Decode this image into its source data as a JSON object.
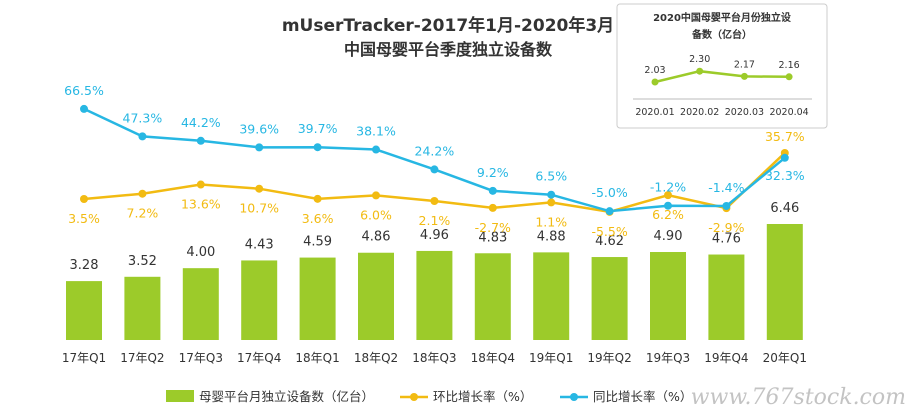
{
  "chart_data": [
    {
      "type": "bar",
      "title": "mUserTracker-2017年1月-2020年3月",
      "subtitle": "中国母婴平台季度独立设备数",
      "categories": [
        "17年Q1",
        "17年Q2",
        "17年Q3",
        "17年Q4",
        "18年Q1",
        "18年Q2",
        "18年Q3",
        "18年Q4",
        "19年Q1",
        "19年Q2",
        "19年Q3",
        "19年Q4",
        "20年Q1"
      ],
      "series": [
        {
          "name": "母婴平台月独立设备数（亿台）",
          "type": "bar",
          "color": "#9ccb2a",
          "values": [
            3.28,
            3.52,
            4.0,
            4.43,
            4.59,
            4.86,
            4.96,
            4.83,
            4.88,
            4.62,
            4.9,
            4.76,
            6.46
          ],
          "labels": [
            "3.28",
            "3.52",
            "4.00",
            "4.43",
            "4.59",
            "4.86",
            "4.96",
            "4.83",
            "4.88",
            "4.62",
            "4.90",
            "4.76",
            "6.46"
          ]
        },
        {
          "name": "环比增长率（%）",
          "type": "line",
          "color": "#f2bb12",
          "values": [
            3.5,
            7.2,
            13.6,
            10.7,
            3.6,
            6.0,
            2.1,
            -2.7,
            1.1,
            -5.5,
            6.2,
            -2.9,
            35.7
          ],
          "labels": [
            "3.5%",
            "7.2%",
            "13.6%",
            "10.7%",
            "3.6%",
            "6.0%",
            "2.1%",
            "-2.7%",
            "1.1%",
            "-5.5%",
            "6.2%",
            "-2.9%",
            "35.7%"
          ]
        },
        {
          "name": "同比增长率（%）",
          "type": "line",
          "color": "#27b7e3",
          "values": [
            66.5,
            47.3,
            44.2,
            39.6,
            39.7,
            38.1,
            24.2,
            9.2,
            6.5,
            -5.0,
            -1.2,
            -1.4,
            32.3
          ],
          "labels": [
            "66.5%",
            "47.3%",
            "44.2%",
            "39.6%",
            "39.7%",
            "38.1%",
            "24.2%",
            "9.2%",
            "6.5%",
            "-5.0%",
            "-1.2%",
            "-1.4%",
            "32.3%"
          ]
        }
      ],
      "legend_position": "bottom",
      "grid": false
    },
    {
      "type": "line",
      "title": "2020中国母婴平台月份独立设备数（亿台）",
      "categories": [
        "2020.01",
        "2020.02",
        "2020.03",
        "2020.04"
      ],
      "series": [
        {
          "type": "line",
          "color": "#9ccb2a",
          "values": [
            2.03,
            2.3,
            2.17,
            2.16
          ],
          "labels": [
            "2.03",
            "2.30",
            "2.17",
            "2.16"
          ]
        }
      ]
    }
  ],
  "watermark": "www.767stock.com"
}
